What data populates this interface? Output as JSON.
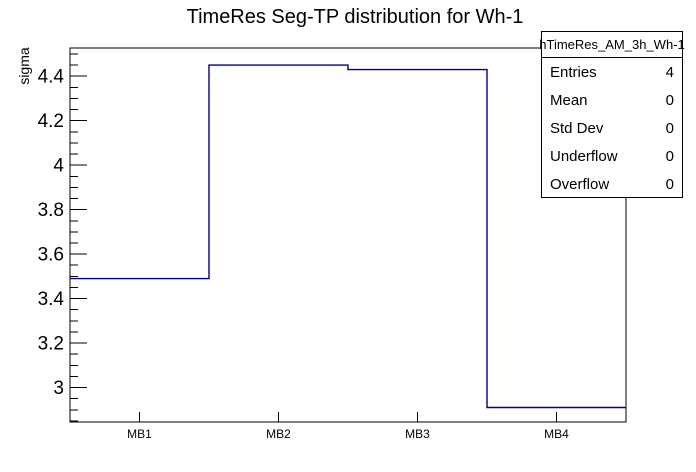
{
  "page": {
    "background": "#ffffff"
  },
  "chart_data": {
    "type": "step-histogram",
    "title": "TimeRes Seg-TP distribution for Wh-1",
    "ylabel": "sigma",
    "xlabel": "",
    "categories": [
      "MB1",
      "MB2",
      "MB3",
      "MB4"
    ],
    "values": [
      3.49,
      4.45,
      4.43,
      2.91
    ],
    "ylim": [
      2.845,
      4.527
    ],
    "yticks_major": [
      3,
      3.2,
      3.4,
      3.6,
      3.8,
      4,
      4.2,
      4.4
    ],
    "ytick_minor_step": 0.05,
    "grid": false,
    "legend": false,
    "line_color": "#00008b",
    "axis_color": "#000000"
  },
  "stats_box": {
    "title": "hTimeRes_AM_3h_Wh-1",
    "rows": [
      {
        "label": "Entries",
        "value": "4"
      },
      {
        "label": "Mean",
        "value": "0"
      },
      {
        "label": "Std Dev",
        "value": "0"
      },
      {
        "label": "Underflow",
        "value": "0"
      },
      {
        "label": "Overflow",
        "value": "0"
      }
    ]
  }
}
